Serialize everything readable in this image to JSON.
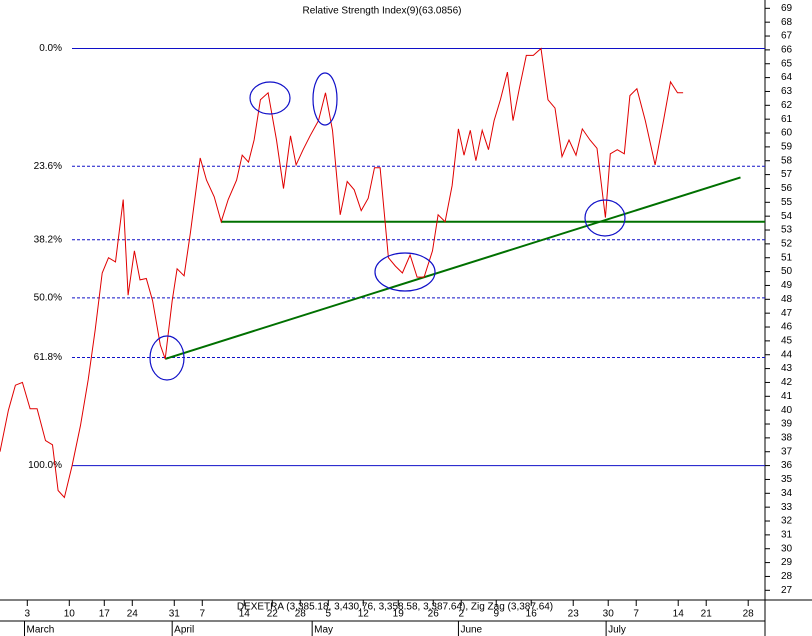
{
  "chart_data": {
    "type": "line",
    "title": "Relative Strength Index(9)(63.0856)",
    "footer_label": "DEXETRA (3,385.18, 3,430.76, 3,358.58, 3,387.64), Zig Zag (3,387.64)",
    "xlim": [
      -3.9,
      105.4
    ],
    "ylim": [
      26.3,
      69.6
    ],
    "yticks": [
      27,
      28,
      29,
      30,
      31,
      32,
      33,
      34,
      35,
      36,
      37,
      38,
      39,
      40,
      41,
      42,
      43,
      44,
      45,
      46,
      47,
      48,
      49,
      50,
      51,
      52,
      53,
      54,
      55,
      56,
      57,
      58,
      59,
      60,
      61,
      62,
      63,
      64,
      65,
      66,
      67,
      68,
      69
    ],
    "xticks": [
      {
        "value": 0,
        "label": "3"
      },
      {
        "value": 6,
        "label": "10"
      },
      {
        "value": 11,
        "label": "17"
      },
      {
        "value": 15,
        "label": "24"
      },
      {
        "value": 21,
        "label": "31"
      },
      {
        "value": 25,
        "label": "7"
      },
      {
        "value": 31,
        "label": "14"
      },
      {
        "value": 35,
        "label": "22"
      },
      {
        "value": 39,
        "label": "28"
      },
      {
        "value": 43,
        "label": "5"
      },
      {
        "value": 48,
        "label": "12"
      },
      {
        "value": 53,
        "label": "19"
      },
      {
        "value": 58,
        "label": "26"
      },
      {
        "value": 62,
        "label": "2"
      },
      {
        "value": 67,
        "label": "9"
      },
      {
        "value": 72,
        "label": "16"
      },
      {
        "value": 78,
        "label": "23"
      },
      {
        "value": 83,
        "label": "30"
      },
      {
        "value": 87,
        "label": "7"
      },
      {
        "value": 93,
        "label": "14"
      },
      {
        "value": 97,
        "label": "21"
      },
      {
        "value": 103,
        "label": "28"
      }
    ],
    "month_labels": [
      {
        "value": -0.4,
        "label": "March"
      },
      {
        "value": 20.7,
        "label": "April"
      },
      {
        "value": 40.7,
        "label": "May"
      },
      {
        "value": 61.6,
        "label": "June"
      },
      {
        "value": 82.7,
        "label": "July"
      }
    ],
    "fib_color": "#1010c8",
    "fib_levels": [
      {
        "value": 66.1,
        "label": "0.0%",
        "style": "solid"
      },
      {
        "value": 57.6,
        "label": "23.6%",
        "style": "dashed"
      },
      {
        "value": 52.3,
        "label": "38.2%",
        "style": "dashed"
      },
      {
        "value": 48.1,
        "label": "50.0%",
        "style": "dashed"
      },
      {
        "value": 43.8,
        "label": "61.8%",
        "style": "dashed"
      },
      {
        "value": 36.0,
        "label": "100.0%",
        "style": "solid"
      }
    ],
    "series": [
      {
        "color": "#e00000",
        "x": [
          -3.9,
          -2.7,
          -1.7,
          -0.7,
          0.4,
          1.4,
          2.6,
          3.6,
          4.4,
          5.3,
          6.4,
          7.6,
          8.7,
          9.7,
          10.7,
          11.6,
          12.6,
          13.7,
          14.4,
          15.3,
          16.1,
          17.0,
          17.9,
          19.0,
          19.7,
          20.7,
          21.4,
          22.4,
          23.3,
          24.7,
          25.6,
          26.7,
          27.7,
          28.7,
          29.9,
          30.7,
          31.6,
          32.4,
          33.3,
          34.4,
          35.6,
          36.6,
          37.6,
          38.4,
          39.4,
          40.4,
          41.6,
          42.6,
          43.6,
          44.7,
          45.7,
          46.7,
          47.7,
          48.7,
          49.6,
          50.4,
          51.6,
          52.6,
          53.6,
          54.7,
          55.7,
          56.7,
          57.9,
          58.7,
          59.7,
          60.7,
          61.6,
          62.4,
          63.3,
          64.1,
          65.0,
          65.9,
          66.7,
          67.6,
          68.6,
          69.4,
          70.3,
          71.3,
          72.3,
          73.4,
          74.4,
          75.4,
          76.4,
          77.4,
          78.4,
          79.3,
          80.4,
          81.4,
          82.6,
          83.3,
          84.3,
          85.3,
          86.1,
          87.1,
          88.3,
          89.7,
          90.9,
          91.9,
          92.9,
          93.7
        ],
        "values": [
          37.0,
          40.0,
          41.8,
          42.0,
          40.1,
          40.1,
          37.8,
          37.5,
          34.2,
          33.7,
          36.0,
          38.9,
          42.2,
          45.8,
          49.9,
          51.0,
          50.7,
          55.2,
          48.3,
          51.5,
          49.4,
          49.5,
          47.9,
          44.7,
          43.7,
          47.9,
          50.2,
          49.7,
          52.8,
          58.2,
          56.6,
          55.4,
          53.6,
          55.2,
          56.6,
          58.4,
          57.9,
          59.5,
          62.4,
          62.9,
          59.5,
          56.0,
          59.8,
          57.7,
          58.8,
          59.8,
          60.9,
          62.9,
          60.2,
          54.1,
          56.5,
          55.9,
          54.4,
          55.3,
          57.5,
          57.5,
          51.0,
          50.4,
          49.9,
          51.2,
          49.6,
          49.6,
          51.5,
          54.1,
          53.6,
          56.2,
          60.3,
          58.4,
          60.2,
          58.0,
          60.2,
          58.8,
          60.9,
          62.4,
          64.4,
          60.9,
          63.2,
          65.6,
          65.6,
          66.1,
          62.4,
          61.8,
          58.3,
          59.5,
          58.4,
          60.3,
          59.5,
          58.9,
          53.9,
          58.5,
          58.8,
          58.5,
          62.7,
          63.2,
          60.9,
          57.7,
          60.9,
          63.7,
          62.9,
          62.9
        ]
      }
    ],
    "trendlines": [
      {
        "color": "#007000",
        "x": [
          19.7,
          101.9
        ],
        "values": [
          43.7,
          56.8
        ]
      },
      {
        "color": "#007000",
        "x": [
          27.7,
          105.4
        ],
        "values": [
          53.6,
          53.6
        ]
      }
    ]
  }
}
